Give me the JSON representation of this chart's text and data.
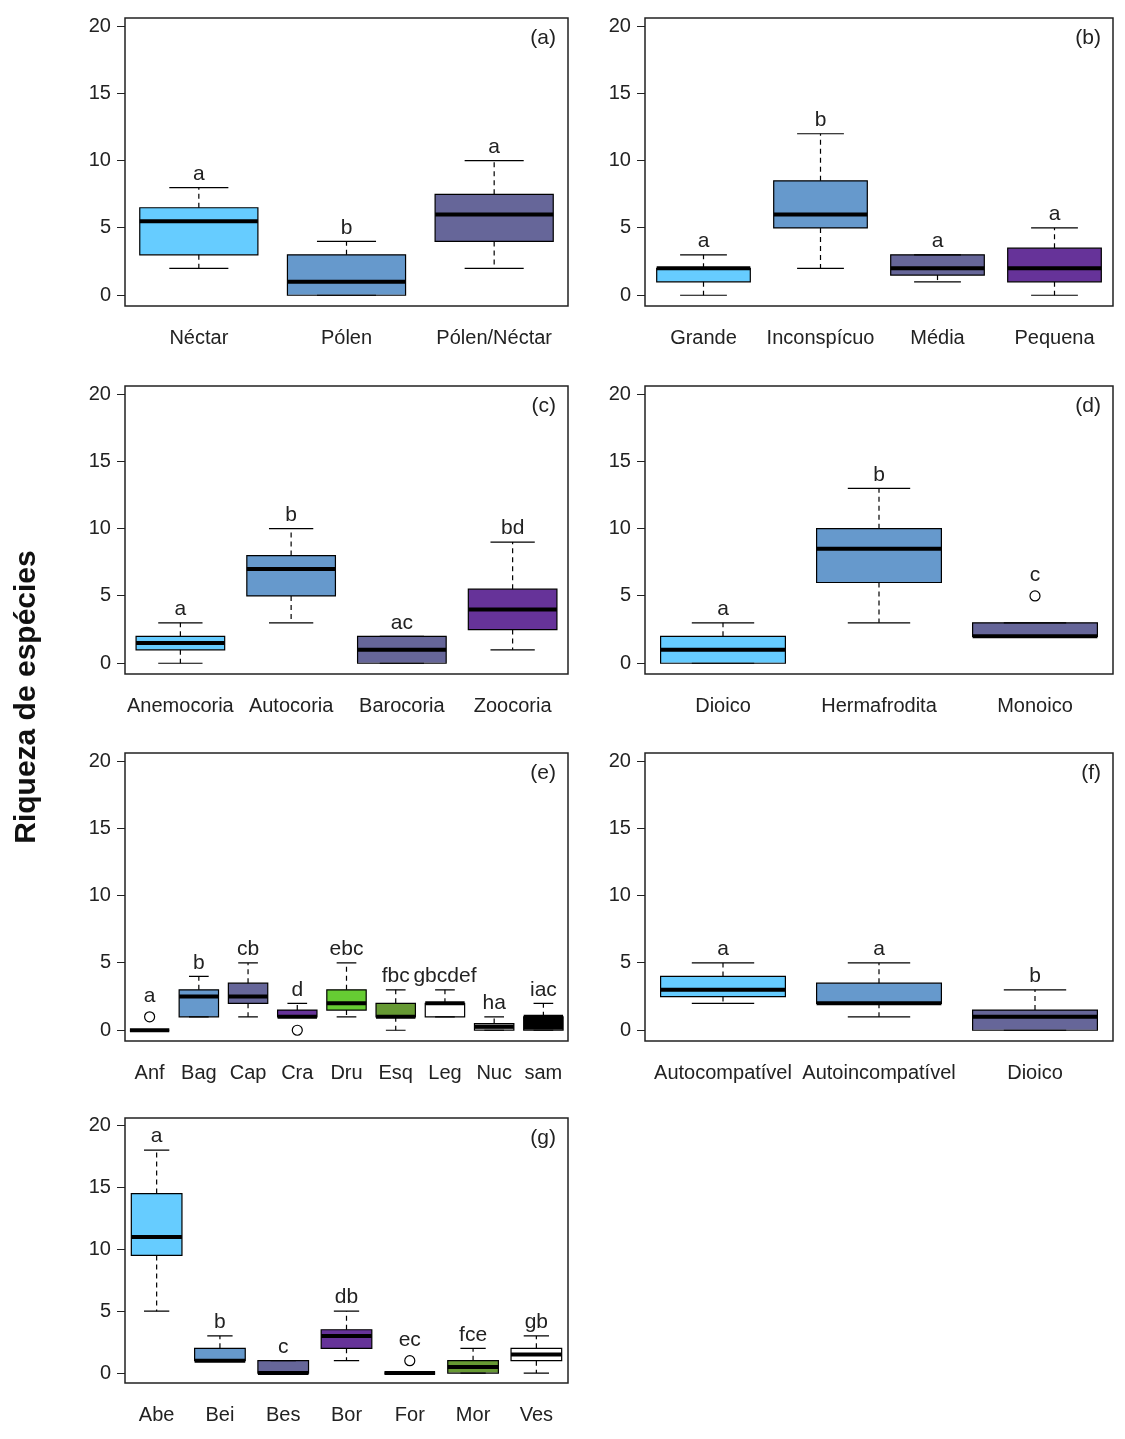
{
  "chart_data": [
    {
      "type": "box",
      "categories": [
        "Néctar",
        "Pólen",
        "Pólen/Néctar"
      ],
      "colors": [
        "#66ccff",
        "#6699cc",
        "#666699"
      ],
      "ylim": [
        -0.8,
        20.6
      ],
      "yticks": [
        0,
        5,
        10,
        15,
        20
      ],
      "boxes": [
        {
          "low": 2,
          "q1": 3,
          "median": 5.5,
          "q3": 6.5,
          "high": 8
        },
        {
          "low": 0,
          "q1": 0,
          "median": 1,
          "q3": 3,
          "high": 4
        },
        {
          "low": 2,
          "q1": 4,
          "median": 6,
          "q3": 7.5,
          "high": 10
        }
      ],
      "annotations": [
        "(a)",
        "a",
        "b",
        "a"
      ]
    },
    {
      "type": "box",
      "categories": [
        "Grande",
        "Inconspícuo",
        "Média",
        "Pequena"
      ],
      "colors": [
        "#66ccff",
        "#6699cc",
        "#666699",
        "#663399"
      ],
      "ylim": [
        -0.8,
        20.6
      ],
      "yticks": [
        0,
        5,
        10,
        15,
        20
      ],
      "boxes": [
        {
          "low": 0,
          "q1": 1,
          "median": 2,
          "q3": 2,
          "high": 3
        },
        {
          "low": 2,
          "q1": 5,
          "median": 6,
          "q3": 8.5,
          "high": 12
        },
        {
          "low": 1,
          "q1": 1.5,
          "median": 2,
          "q3": 3,
          "high": 3
        },
        {
          "low": 0,
          "q1": 1,
          "median": 2,
          "q3": 3.5,
          "high": 5
        }
      ],
      "annotations": [
        "(b)",
        "a",
        "b",
        "a",
        "a"
      ]
    },
    {
      "type": "box",
      "categories": [
        "Anemocoria",
        "Autocoria",
        "Barocoria",
        "Zoocoria"
      ],
      "colors": [
        "#66ccff",
        "#6699cc",
        "#666699",
        "#663399"
      ],
      "ylim": [
        -0.8,
        20.6
      ],
      "yticks": [
        0,
        5,
        10,
        15,
        20
      ],
      "ylabel": "Riqueza de espécies",
      "boxes": [
        {
          "low": 0,
          "q1": 1,
          "median": 1.5,
          "q3": 2,
          "high": 3
        },
        {
          "low": 3,
          "q1": 5,
          "median": 7,
          "q3": 8,
          "high": 10
        },
        {
          "low": 0,
          "q1": 0,
          "median": 1,
          "q3": 2,
          "high": 2
        },
        {
          "low": 1,
          "q1": 2.5,
          "median": 4,
          "q3": 5.5,
          "high": 9
        }
      ],
      "annotations": [
        "(c)",
        "a",
        "b",
        "ac",
        "bd"
      ]
    },
    {
      "type": "box",
      "categories": [
        "Dioico",
        "Hermafrodita",
        "Monoico"
      ],
      "colors": [
        "#66ccff",
        "#6699cc",
        "#666699"
      ],
      "ylim": [
        -0.8,
        20.6
      ],
      "yticks": [
        0,
        5,
        10,
        15,
        20
      ],
      "boxes": [
        {
          "low": 0,
          "q1": 0,
          "median": 1,
          "q3": 2,
          "high": 3
        },
        {
          "low": 3,
          "q1": 6,
          "median": 8.5,
          "q3": 10,
          "high": 13
        },
        {
          "low": 2,
          "q1": 2,
          "median": 2,
          "q3": 3,
          "high": 3,
          "outliers": [
            5
          ]
        }
      ],
      "annotations": [
        "(d)",
        "a",
        "b",
        "c"
      ]
    },
    {
      "type": "box",
      "categories": [
        "Anf",
        "Bag",
        "Cap",
        "Cra",
        "Dru",
        "Esq",
        "Leg",
        "Nuc",
        "sam"
      ],
      "colors": [
        "#000000",
        "#6699cc",
        "#666699",
        "#663399",
        "#66cc33",
        "#669933",
        "#ffffff",
        "#999999",
        "#000000"
      ],
      "ylim": [
        -0.8,
        20.6
      ],
      "yticks": [
        0,
        5,
        10,
        15,
        20
      ],
      "boxes": [
        {
          "low": 0,
          "q1": 0,
          "median": 0,
          "q3": 0,
          "high": 0,
          "outliers": [
            1
          ]
        },
        {
          "low": 1,
          "q1": 1,
          "median": 2.5,
          "q3": 3,
          "high": 4
        },
        {
          "low": 1,
          "q1": 2,
          "median": 2.5,
          "q3": 3.5,
          "high": 5
        },
        {
          "low": 1,
          "q1": 1,
          "median": 1,
          "q3": 1.5,
          "high": 2,
          "outliers": [
            0
          ]
        },
        {
          "low": 1,
          "q1": 1.5,
          "median": 2,
          "q3": 3,
          "high": 5
        },
        {
          "low": 0,
          "q1": 1,
          "median": 1,
          "q3": 2,
          "high": 3
        },
        {
          "low": 1,
          "q1": 1,
          "median": 2,
          "q3": 2,
          "high": 3
        },
        {
          "low": 0,
          "q1": 0,
          "median": 0.25,
          "q3": 0.5,
          "high": 1
        },
        {
          "low": 0,
          "q1": 0,
          "median": 1,
          "q3": 1,
          "high": 2
        }
      ],
      "annotations": [
        "(e)",
        "a",
        "b",
        "cb",
        "d",
        "ebc",
        "fbc",
        "gbcdef",
        "ha",
        "iac"
      ]
    },
    {
      "type": "box",
      "categories": [
        "Autocompatível",
        "Autoincompatível",
        "Dioico"
      ],
      "colors": [
        "#66ccff",
        "#6699cc",
        "#666699"
      ],
      "ylim": [
        -0.8,
        20.6
      ],
      "yticks": [
        0,
        5,
        10,
        15,
        20
      ],
      "boxes": [
        {
          "low": 2,
          "q1": 2.5,
          "median": 3,
          "q3": 4,
          "high": 5
        },
        {
          "low": 1,
          "q1": 2,
          "median": 2,
          "q3": 3.5,
          "high": 5
        },
        {
          "low": 0,
          "q1": 0,
          "median": 1,
          "q3": 1.5,
          "high": 3
        }
      ],
      "annotations": [
        "(f)",
        "a",
        "a",
        "b"
      ]
    },
    {
      "type": "box",
      "categories": [
        "Abe",
        "Bei",
        "Bes",
        "Bor",
        "For",
        "Mor",
        "Ves"
      ],
      "colors": [
        "#66ccff",
        "#6699cc",
        "#666699",
        "#663399",
        "#000000",
        "#669933",
        "#ffffff"
      ],
      "ylim": [
        -0.8,
        20.6
      ],
      "yticks": [
        0,
        5,
        10,
        15,
        20
      ],
      "boxes": [
        {
          "low": 5,
          "q1": 9.5,
          "median": 11,
          "q3": 14.5,
          "high": 18
        },
        {
          "low": 1,
          "q1": 1,
          "median": 1,
          "q3": 2,
          "high": 3
        },
        {
          "low": 0,
          "q1": 0,
          "median": 0,
          "q3": 1,
          "high": 1
        },
        {
          "low": 1,
          "q1": 2,
          "median": 3,
          "q3": 3.5,
          "high": 5
        },
        {
          "low": 0,
          "q1": 0,
          "median": 0,
          "q3": 0,
          "high": 0,
          "outliers": [
            1
          ]
        },
        {
          "low": 0,
          "q1": 0,
          "median": 0.5,
          "q3": 1,
          "high": 2
        },
        {
          "low": 0,
          "q1": 1,
          "median": 1.5,
          "q3": 2,
          "high": 3
        }
      ],
      "annotations": [
        "(g)",
        "a",
        "b",
        "c",
        "db",
        "ec",
        "fce",
        "gb"
      ]
    }
  ]
}
